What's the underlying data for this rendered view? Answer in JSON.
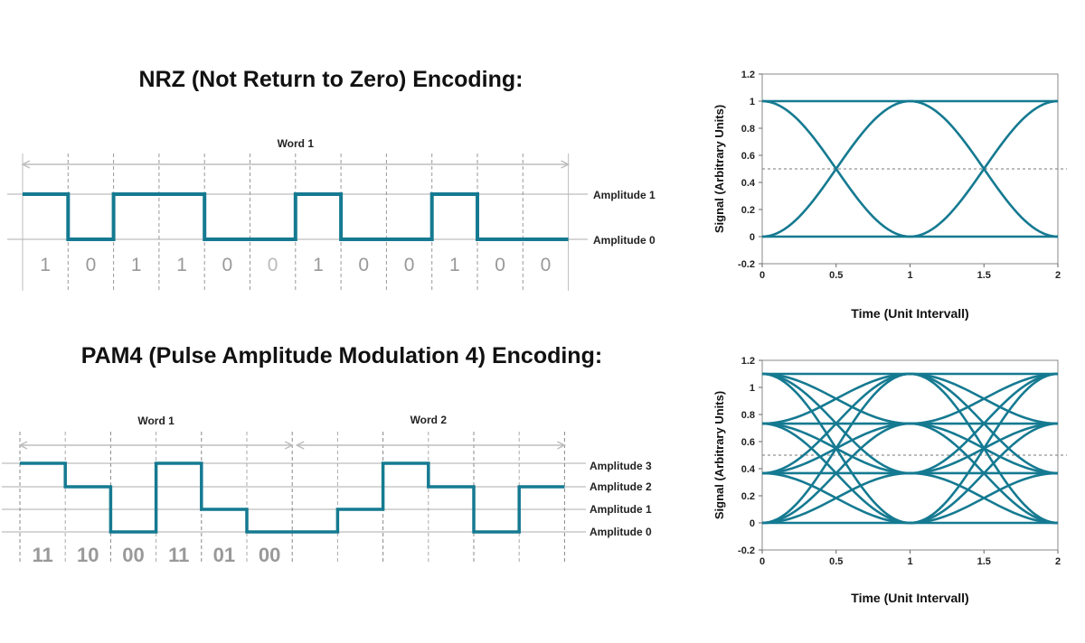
{
  "nrz": {
    "title": "NRZ (Not Return to Zero) Encoding:",
    "word_label": "Word 1",
    "amplitude_labels": [
      "Amplitude 1",
      "Amplitude 0"
    ],
    "bits": [
      "1",
      "0",
      "1",
      "1",
      "0",
      "0",
      "1",
      "0",
      "0",
      "1",
      "0",
      "0"
    ]
  },
  "pam4": {
    "title": "PAM4 (Pulse Amplitude Modulation 4) Encoding:",
    "word_labels": [
      "Word 1",
      "Word 2"
    ],
    "amplitude_labels": [
      "Amplitude 3",
      "Amplitude 2",
      "Amplitude 1",
      "Amplitude 0"
    ],
    "symbols": [
      "11",
      "10",
      "00",
      "11",
      "01",
      "00"
    ],
    "levels": [
      3,
      2,
      0,
      3,
      1,
      0,
      0,
      1,
      3,
      2,
      0,
      2
    ]
  },
  "colors": {
    "signal": "#157a91",
    "grid": "#bdbdbd",
    "label": "#999999"
  },
  "chart_data": [
    {
      "type": "line",
      "title": "",
      "xlabel": "Time (Unit Intervall)",
      "ylabel": "Signal (Arbitrary Units)",
      "xlim": [
        0,
        2
      ],
      "ylim": [
        -0.2,
        1.2
      ],
      "xticks": [
        "0",
        "0.5",
        "1",
        "1.5",
        "2"
      ],
      "yticks": [
        "-0.2",
        "0",
        "0.2",
        "0.4",
        "0.6",
        "0.8",
        "1",
        "1.2"
      ],
      "threshold": 0.5,
      "levels": [
        0,
        1
      ],
      "grid": false
    },
    {
      "type": "line",
      "title": "",
      "xlabel": "Time (Unit Intervall)",
      "ylabel": "Signal (Arbitrary Units)",
      "xlim": [
        0,
        2
      ],
      "ylim": [
        -0.2,
        1.2
      ],
      "xticks": [
        "0",
        "0.5",
        "1",
        "1.5",
        "2"
      ],
      "yticks": [
        "-0.2",
        "0",
        "0.2",
        "0.4",
        "0.6",
        "0.8",
        "1",
        "1.2"
      ],
      "threshold": 0.5,
      "levels": [
        0,
        0.367,
        0.733,
        1.1
      ],
      "grid": false
    }
  ]
}
